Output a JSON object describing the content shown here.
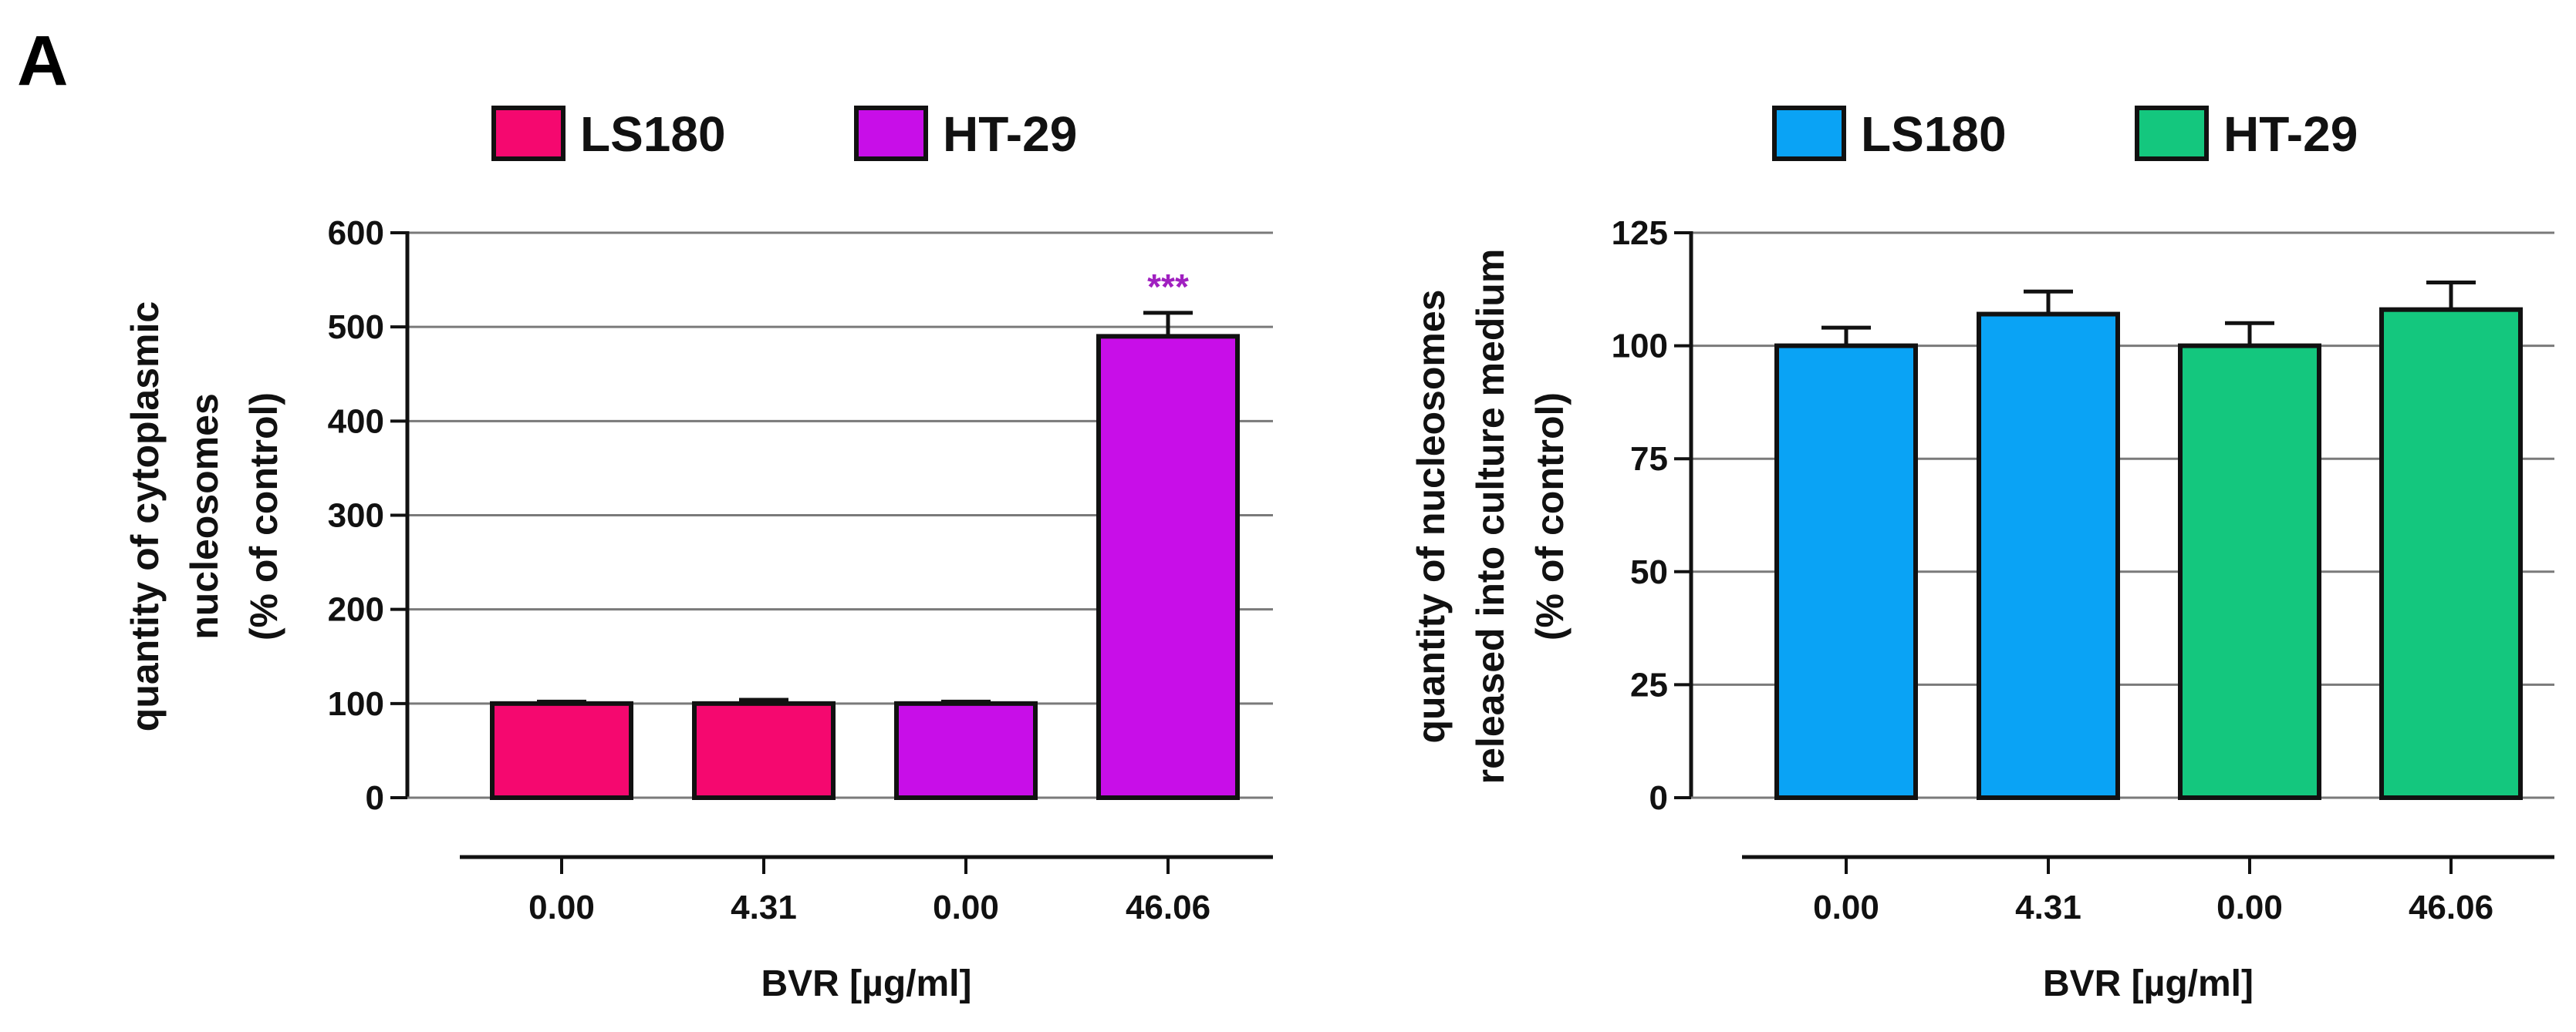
{
  "panel_label": "A",
  "chart_data": [
    {
      "type": "bar",
      "categories": [
        "0.00",
        "4.31",
        "0.00",
        "46.06"
      ],
      "values": [
        100,
        100,
        100,
        490
      ],
      "errors": [
        2,
        4,
        2,
        25
      ],
      "bar_series": [
        "LS180",
        "LS180",
        "HT-29",
        "HT-29"
      ],
      "bar_colors": [
        "#f5086f",
        "#f5086f",
        "#c80ee8",
        "#c80ee8"
      ],
      "legend": [
        {
          "name": "LS180",
          "color": "#f5086f"
        },
        {
          "name": "HT-29",
          "color": "#c80ee8"
        }
      ],
      "annotations": [
        {
          "bar_index": 3,
          "text": "***",
          "color": "#a020c0"
        }
      ],
      "yticks": [
        0,
        100,
        200,
        300,
        400,
        500,
        600
      ],
      "ylim": [
        0,
        600
      ],
      "ylabel_lines": [
        "quantity of cytoplasmic",
        "nucleosomes",
        "(% of control)"
      ],
      "xlabel": "BVR [µg/ml]",
      "grid": true,
      "legend_position": "top"
    },
    {
      "type": "bar",
      "categories": [
        "0.00",
        "4.31",
        "0.00",
        "46.06"
      ],
      "values": [
        100,
        107,
        100,
        108
      ],
      "errors": [
        4,
        5,
        5,
        6
      ],
      "bar_series": [
        "LS180",
        "LS180",
        "HT-29",
        "HT-29"
      ],
      "bar_colors": [
        "#0aa3f5",
        "#0aa3f5",
        "#14c77e",
        "#14c77e"
      ],
      "legend": [
        {
          "name": "LS180",
          "color": "#0aa3f5"
        },
        {
          "name": "HT-29",
          "color": "#14c77e"
        }
      ],
      "annotations": [],
      "yticks": [
        0,
        25,
        50,
        75,
        100,
        125
      ],
      "ylim": [
        0,
        125
      ],
      "ylabel_lines": [
        "quantity of nucleosomes",
        "released into culture medium",
        "(% of control)"
      ],
      "xlabel": "BVR [µg/ml]",
      "grid": true,
      "legend_position": "top"
    }
  ]
}
